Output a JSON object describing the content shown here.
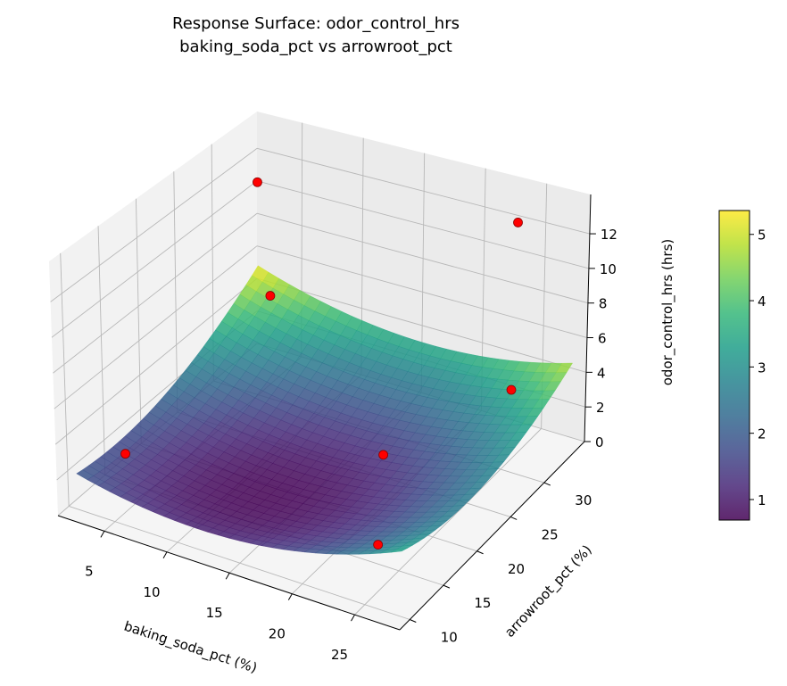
{
  "chart_data": {
    "type": "surface3d",
    "title": "Response Surface: odor_control_hrs",
    "subtitle": "baking_soda_pct vs arrowroot_pct",
    "xlabel": "baking_soda_pct (%)",
    "ylabel": "arrowroot_pct (%)",
    "zlabel": "odor_control_hrs (hrs)",
    "xlim": [
      1.3,
      28.6
    ],
    "ylim": [
      8.5,
      36
    ],
    "zlim": [
      0,
      14.27
    ],
    "xticks": [
      5,
      10,
      15,
      20,
      25
    ],
    "yticks": [
      10,
      15,
      20,
      25,
      30
    ],
    "zticks": [
      0,
      2,
      4,
      6,
      8,
      10,
      12
    ],
    "grid": true,
    "surface": {
      "colormap": "viridis",
      "x_range": [
        2,
        28
      ],
      "y_range": [
        10,
        35
      ],
      "model": "z = 0.7 + 0.0091*(x-13)^2 + 0.0089*(y-17)^2 - 0.0031*(x-13)*(y-17)",
      "coef": {
        "z0": 0.7,
        "xc": 13,
        "yc": 17,
        "b": 0.0091,
        "c": 0.0089,
        "d": -0.0031
      }
    },
    "points": [
      {
        "x": 5,
        "y": 30,
        "z": 12.7
      },
      {
        "x": 25,
        "y": 32,
        "z": 13.4
      },
      {
        "x": 9,
        "y": 25,
        "z": 8.5
      },
      {
        "x": 3,
        "y": 15,
        "z": 1.6
      },
      {
        "x": 21,
        "y": 20,
        "z": 3.7
      },
      {
        "x": 28,
        "y": 26,
        "z": 6.6
      },
      {
        "x": 25,
        "y": 12,
        "z": 2.5
      }
    ],
    "point_color": "#ff0000",
    "colorbar": {
      "label": "odor_control_hrs (hrs)",
      "range": [
        0.69,
        5.36
      ],
      "ticks": [
        1,
        2,
        3,
        4,
        5
      ]
    }
  }
}
